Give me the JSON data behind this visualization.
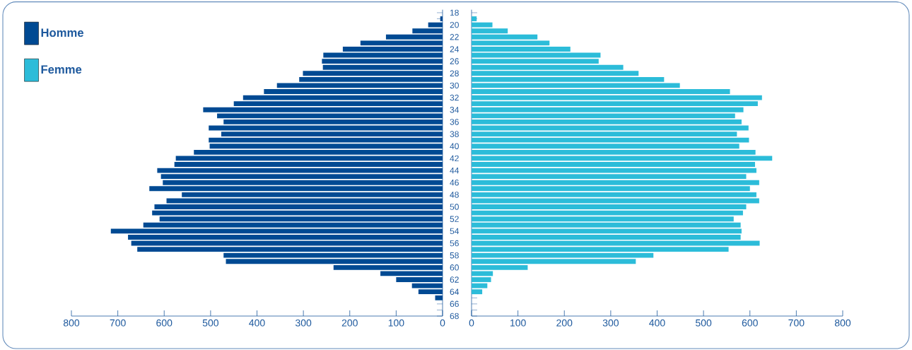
{
  "chart_data": [
    {
      "type": "bar",
      "orientation": "horizontal",
      "legend": "top left",
      "grid": false,
      "categories": [
        "18",
        null,
        "20",
        null,
        "22",
        null,
        "24",
        null,
        "26",
        null,
        "28",
        null,
        "30",
        null,
        "32",
        null,
        "34",
        null,
        "36",
        null,
        "38",
        null,
        "40",
        null,
        "42",
        null,
        "44",
        null,
        "46",
        null,
        "48",
        null,
        "50",
        null,
        "52",
        null,
        "54",
        null,
        "56",
        null,
        "58",
        null,
        "60",
        null,
        "62",
        null,
        "64",
        null,
        "66",
        null,
        "68"
      ],
      "series": [
        {
          "name": "Homme",
          "color": "#004a93",
          "values": [
            null,
            5,
            31,
            65,
            122,
            177,
            215,
            257,
            260,
            258,
            301,
            309,
            357,
            385,
            430,
            450,
            516,
            486,
            472,
            504,
            477,
            504,
            502,
            536,
            575,
            578,
            615,
            607,
            603,
            632,
            562,
            595,
            621,
            626,
            610,
            645,
            715,
            678,
            671,
            658,
            472,
            467,
            235,
            134,
            100,
            66,
            52,
            16,
            null,
            null,
            null
          ]
        }
      ],
      "xlim": [
        800,
        0
      ],
      "xticks": [
        800,
        700,
        600,
        500,
        400,
        300,
        200,
        100,
        0
      ]
    },
    {
      "type": "bar",
      "orientation": "horizontal",
      "legend": "top left",
      "grid": false,
      "tick_labels": "x",
      "categories": [
        "18",
        null,
        "20",
        null,
        "22",
        null,
        "24",
        null,
        "26",
        null,
        "28",
        null,
        "30",
        null,
        "32",
        null,
        "34",
        null,
        "36",
        null,
        "38",
        null,
        "40",
        null,
        "42",
        null,
        "44",
        null,
        "46",
        null,
        "48",
        null,
        "50",
        null,
        "52",
        null,
        "54",
        null,
        "56",
        null,
        "58",
        null,
        "60",
        null,
        "62",
        null,
        "64",
        null,
        "66",
        null,
        "68"
      ],
      "series": [
        {
          "name": "Femme",
          "color": "#2cbcd9",
          "values": [
            null,
            11,
            45,
            78,
            142,
            168,
            213,
            278,
            274,
            327,
            360,
            415,
            449,
            557,
            626,
            617,
            586,
            568,
            582,
            597,
            572,
            598,
            577,
            612,
            648,
            611,
            614,
            592,
            620,
            600,
            614,
            620,
            592,
            585,
            565,
            580,
            582,
            580,
            621,
            554,
            392,
            354,
            121,
            46,
            42,
            34,
            23,
            null,
            null,
            null,
            null
          ]
        }
      ],
      "xlim": [
        0,
        800
      ],
      "xticks": [
        0,
        100,
        200,
        300,
        400,
        500,
        600,
        700,
        800
      ]
    }
  ]
}
